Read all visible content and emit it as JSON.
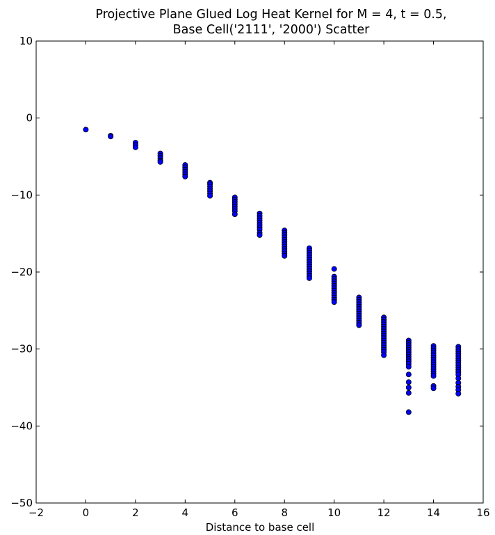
{
  "chart_data": {
    "type": "scatter",
    "title": [
      "Projective Plane Glued Log Heat Kernel for M = 4, t = 0.5,",
      "Base Cell('2111', '2000') Scatter"
    ],
    "xlabel": "Distance to base cell",
    "ylabel": "",
    "xlim": [
      -2,
      16
    ],
    "ylim": [
      -50,
      10
    ],
    "xticks": [
      -2,
      0,
      2,
      4,
      6,
      8,
      10,
      12,
      14,
      16
    ],
    "yticks": [
      -50,
      -40,
      -30,
      -20,
      -10,
      0,
      10
    ],
    "xtick_labels": [
      "−2",
      "0",
      "2",
      "4",
      "6",
      "8",
      "10",
      "12",
      "14",
      "16"
    ],
    "ytick_labels": [
      "−50",
      "−40",
      "−30",
      "−20",
      "−10",
      "0",
      "10"
    ],
    "grid": false,
    "legend": null,
    "marker_color": "#0000ff",
    "marker_edge_color": "#000000",
    "series": [
      {
        "points": [
          [
            0,
            -1.5
          ],
          [
            1,
            -2.3
          ],
          [
            1,
            -2.4
          ],
          [
            2,
            -3.2
          ],
          [
            2,
            -3.5
          ],
          [
            2,
            -3.8
          ],
          [
            3,
            -4.6
          ],
          [
            3,
            -4.9
          ],
          [
            3,
            -5.2
          ],
          [
            3,
            -5.5
          ],
          [
            3,
            -5.7
          ],
          [
            4,
            -6.1
          ],
          [
            4,
            -6.4
          ],
          [
            4,
            -6.7
          ],
          [
            4,
            -7.0
          ],
          [
            4,
            -7.3
          ],
          [
            4,
            -7.6
          ],
          [
            5,
            -8.4
          ],
          [
            5,
            -8.6
          ],
          [
            5,
            -8.9
          ],
          [
            5,
            -9.2
          ],
          [
            5,
            -9.5
          ],
          [
            5,
            -9.8
          ],
          [
            5,
            -10.1
          ],
          [
            6,
            -10.3
          ],
          [
            6,
            -10.6
          ],
          [
            6,
            -10.9
          ],
          [
            6,
            -11.2
          ],
          [
            6,
            -11.5
          ],
          [
            6,
            -11.8
          ],
          [
            6,
            -12.1
          ],
          [
            6,
            -12.5
          ],
          [
            7,
            -12.4
          ],
          [
            7,
            -12.7
          ],
          [
            7,
            -13.0
          ],
          [
            7,
            -13.3
          ],
          [
            7,
            -13.6
          ],
          [
            7,
            -13.9
          ],
          [
            7,
            -14.2
          ],
          [
            7,
            -14.5
          ],
          [
            7,
            -14.9
          ],
          [
            7,
            -15.2
          ],
          [
            8,
            -14.6
          ],
          [
            8,
            -14.9
          ],
          [
            8,
            -15.2
          ],
          [
            8,
            -15.5
          ],
          [
            8,
            -15.8
          ],
          [
            8,
            -16.1
          ],
          [
            8,
            -16.4
          ],
          [
            8,
            -16.7
          ],
          [
            8,
            -17.0
          ],
          [
            8,
            -17.3
          ],
          [
            8,
            -17.6
          ],
          [
            8,
            -17.9
          ],
          [
            9,
            -16.9
          ],
          [
            9,
            -17.2
          ],
          [
            9,
            -17.5
          ],
          [
            9,
            -17.8
          ],
          [
            9,
            -18.1
          ],
          [
            9,
            -18.4
          ],
          [
            9,
            -18.7
          ],
          [
            9,
            -19.0
          ],
          [
            9,
            -19.3
          ],
          [
            9,
            -19.6
          ],
          [
            9,
            -19.9
          ],
          [
            9,
            -20.2
          ],
          [
            9,
            -20.5
          ],
          [
            9,
            -20.8
          ],
          [
            10,
            -19.6
          ],
          [
            10,
            -20.6
          ],
          [
            10,
            -20.9
          ],
          [
            10,
            -21.2
          ],
          [
            10,
            -21.5
          ],
          [
            10,
            -21.8
          ],
          [
            10,
            -22.1
          ],
          [
            10,
            -22.4
          ],
          [
            10,
            -22.7
          ],
          [
            10,
            -23.0
          ],
          [
            10,
            -23.3
          ],
          [
            10,
            -23.6
          ],
          [
            10,
            -23.9
          ],
          [
            11,
            -23.3
          ],
          [
            11,
            -23.6
          ],
          [
            11,
            -23.9
          ],
          [
            11,
            -24.2
          ],
          [
            11,
            -24.5
          ],
          [
            11,
            -24.8
          ],
          [
            11,
            -25.1
          ],
          [
            11,
            -25.4
          ],
          [
            11,
            -25.7
          ],
          [
            11,
            -26.0
          ],
          [
            11,
            -26.3
          ],
          [
            11,
            -26.6
          ],
          [
            11,
            -26.9
          ],
          [
            12,
            -25.9
          ],
          [
            12,
            -26.2
          ],
          [
            12,
            -26.5
          ],
          [
            12,
            -26.8
          ],
          [
            12,
            -27.1
          ],
          [
            12,
            -27.4
          ],
          [
            12,
            -27.7
          ],
          [
            12,
            -28.0
          ],
          [
            12,
            -28.3
          ],
          [
            12,
            -28.6
          ],
          [
            12,
            -28.9
          ],
          [
            12,
            -29.2
          ],
          [
            12,
            -29.5
          ],
          [
            12,
            -29.8
          ],
          [
            12,
            -30.1
          ],
          [
            12,
            -30.4
          ],
          [
            12,
            -30.8
          ],
          [
            13,
            -28.9
          ],
          [
            13,
            -29.2
          ],
          [
            13,
            -29.5
          ],
          [
            13,
            -29.8
          ],
          [
            13,
            -30.1
          ],
          [
            13,
            -30.4
          ],
          [
            13,
            -30.7
          ],
          [
            13,
            -31.0
          ],
          [
            13,
            -31.3
          ],
          [
            13,
            -31.6
          ],
          [
            13,
            -31.9
          ],
          [
            13,
            -32.3
          ],
          [
            13,
            -33.3
          ],
          [
            13,
            -34.3
          ],
          [
            13,
            -35.0
          ],
          [
            13,
            -35.7
          ],
          [
            13,
            -38.2
          ],
          [
            14,
            -29.6
          ],
          [
            14,
            -29.9
          ],
          [
            14,
            -30.2
          ],
          [
            14,
            -30.5
          ],
          [
            14,
            -30.8
          ],
          [
            14,
            -31.1
          ],
          [
            14,
            -31.4
          ],
          [
            14,
            -31.7
          ],
          [
            14,
            -32.0
          ],
          [
            14,
            -32.3
          ],
          [
            14,
            -32.6
          ],
          [
            14,
            -32.9
          ],
          [
            14,
            -33.2
          ],
          [
            14,
            -33.5
          ],
          [
            14,
            -34.8
          ],
          [
            14,
            -35.1
          ],
          [
            15,
            -29.7
          ],
          [
            15,
            -30.0
          ],
          [
            15,
            -30.3
          ],
          [
            15,
            -30.6
          ],
          [
            15,
            -30.9
          ],
          [
            15,
            -31.2
          ],
          [
            15,
            -31.5
          ],
          [
            15,
            -31.8
          ],
          [
            15,
            -32.1
          ],
          [
            15,
            -32.4
          ],
          [
            15,
            -32.7
          ],
          [
            15,
            -33.0
          ],
          [
            15,
            -33.3
          ],
          [
            15,
            -33.8
          ],
          [
            15,
            -34.4
          ],
          [
            15,
            -34.9
          ],
          [
            15,
            -35.3
          ],
          [
            15,
            -35.8
          ]
        ]
      }
    ]
  }
}
